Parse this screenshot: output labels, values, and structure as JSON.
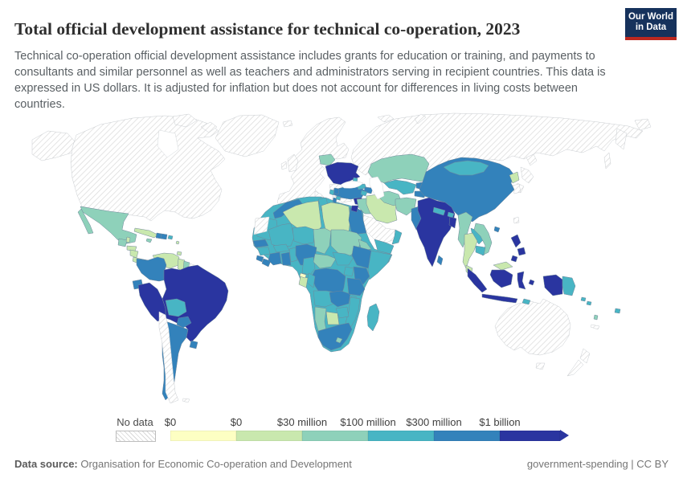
{
  "header": {
    "title": "Total official development assistance for technical co-operation, 2023",
    "subtitle": "Technical co-operation official development assistance includes grants for education or training, and payments to consultants and similar personnel as well as teachers and administrators serving in recipient countries. This data is expressed in US dollars. It is adjusted for inflation but does not account for differences in living costs between countries."
  },
  "logo": {
    "line1": "Our World",
    "line2": "in Data",
    "bg": "#16325c",
    "accent": "#bc2820"
  },
  "legend": {
    "no_data_label": "No data",
    "tick_labels": [
      "$0",
      "$0",
      "$30 million",
      "$100 million",
      "$300 million",
      "$1 billion"
    ]
  },
  "footer": {
    "source_label": "Data source:",
    "source_value": " Organisation for Economic Co-operation and Development",
    "right_text": "government-spending | CC BY"
  },
  "chart_data": {
    "type": "choropleth_map",
    "title": "Total official development assistance for technical co-operation",
    "year": 2023,
    "unit": "US dollars, adjusted for inflation",
    "legend_thresholds": [
      "$0",
      "$0",
      "$30 million",
      "$100 million",
      "$300 million",
      "$1 billion"
    ],
    "colors": [
      "#fdffc3",
      "#c9e8ae",
      "#8ed1ba",
      "#48b5c4",
      "#3382bb",
      "#2a35a0"
    ],
    "no_data_style": "white with grey diagonal hatching",
    "bin_meaning": [
      "$0",
      "$0-$30 million",
      "$30-$100 million",
      "$100-$300 million",
      "$300 million-$1 billion",
      "over $1 billion"
    ],
    "region_bins": {
      "canada-usa": "no_data",
      "alaska": "no_data",
      "greenland": "no_data",
      "iceland": "no_data",
      "arctic-islands-1": "no_data",
      "arctic-islands-2": "no_data",
      "svalbard": "no_data",
      "europe": "no_data",
      "uk": "no_data",
      "ireland": "no_data",
      "italy": "no_data",
      "greece": "no_data",
      "romania": "no_data",
      "bulgaria": "no_data",
      "russia": "no_data",
      "kamchatka": "no_data",
      "chukotka": "no_data",
      "sakhalin": "no_data",
      "novaya-zemlya": "no_data",
      "saudi-arabia": "no_data",
      "japan-n": "no_data",
      "japan-c": "no_data",
      "japan-s": "no_data",
      "south-korea": "no_data",
      "taiwan": "no_data",
      "australia": "no_data",
      "tasmania": "no_data",
      "new-zealand-n": "no_data",
      "new-zealand-s": "no_data",
      "chile": "no_data",
      "western-sahara": "no_data",
      "french-guiana": "no_data",
      "falklands": "no_data",
      "new-caledonia": "no_data",
      "hudson-bay": "water",
      "caspian-sea": "water",
      "black-sea": "water",
      "africa-base": 3,
      "mexico": 2,
      "baja": 2,
      "guatemala": 2,
      "belize": 1,
      "honduras": 1,
      "nicaragua": 1,
      "costa-rica": 1,
      "panama": 3,
      "cuba": 1,
      "jamaica": 2,
      "haiti": 4,
      "dominican-republic": 4,
      "puerto-rico": 3,
      "lesser-antilles": 1,
      "trinidad": 1,
      "colombia": 4,
      "venezuela": 1,
      "guyana": 1,
      "suriname": 2,
      "ecuador": 4,
      "peru": 5,
      "brazil": 5,
      "bolivia": 3,
      "paraguay": 4,
      "argentina": 4,
      "uruguay": 4,
      "morocco": 4,
      "algeria": 1,
      "tunisia": 3,
      "libya": 1,
      "egypt": 4,
      "mauritania": 3,
      "mali": 3,
      "niger": 3,
      "chad": 2,
      "sudan": 2,
      "eritrea": 2,
      "djibouti": 3,
      "senegal": 4,
      "guinea": 3,
      "sierra-leone": 4,
      "liberia": 4,
      "ivory-coast": 4,
      "ghana": 4,
      "burkina-faso": 3,
      "togo-benin": 3,
      "nigeria": 4,
      "cameroon": 3,
      "central-african-republic": 2,
      "south-sudan": 3,
      "ethiopia": 4,
      "somalia": 3,
      "kenya": 4,
      "uganda": 3,
      "drc": 4,
      "congo": 3,
      "gabon": 1,
      "equatorial-guinea": 0,
      "angola": 3,
      "zambia": 4,
      "tanzania": 4,
      "malawi": 3,
      "mozambique": 3,
      "zimbabwe": 3,
      "botswana": 1,
      "namibia": 2,
      "south-africa": 4,
      "lesotho": 2,
      "madagascar": 3,
      "turkey": 4,
      "syria": 5,
      "jordan": 5,
      "iraq": 2,
      "iran": 1,
      "yemen": 3,
      "oman": 3,
      "georgia": 3,
      "azerbaijan": 4,
      "armenia": 3,
      "ukraine": 5,
      "belarus": 2,
      "moldova": 3,
      "serbia": 4,
      "bosnia": 3,
      "albania": 4,
      "macedonia": 3,
      "kazakhstan": 2,
      "uzbekistan": 3,
      "turkmenistan": 2,
      "kyrgyzstan": 4,
      "tajikistan": 4,
      "afghanistan": 2,
      "pakistan": 4,
      "india": 5,
      "nepal": 3,
      "bhutan": 3,
      "bangladesh": 5,
      "sri-lanka": 4,
      "china": 4,
      "mongolia": 3,
      "north-korea": 1,
      "hainan": 4,
      "myanmar": 2,
      "laos": 3,
      "thailand": 1,
      "vietnam": 2,
      "cambodia": 3,
      "malaysia": 1,
      "malaysia-borneo": 1,
      "philippines-n": 5,
      "philippines-c": 5,
      "philippines-s": 5,
      "sumatra": 5,
      "java": 5,
      "kalimantan": 5,
      "sulawesi": 5,
      "moluccas": 5,
      "west-papua": 5,
      "papua-new-guinea": 3,
      "timor": 3,
      "solomon-1": 3,
      "solomon-2": 3,
      "vanuatu": 2,
      "fiji": 3
    }
  }
}
